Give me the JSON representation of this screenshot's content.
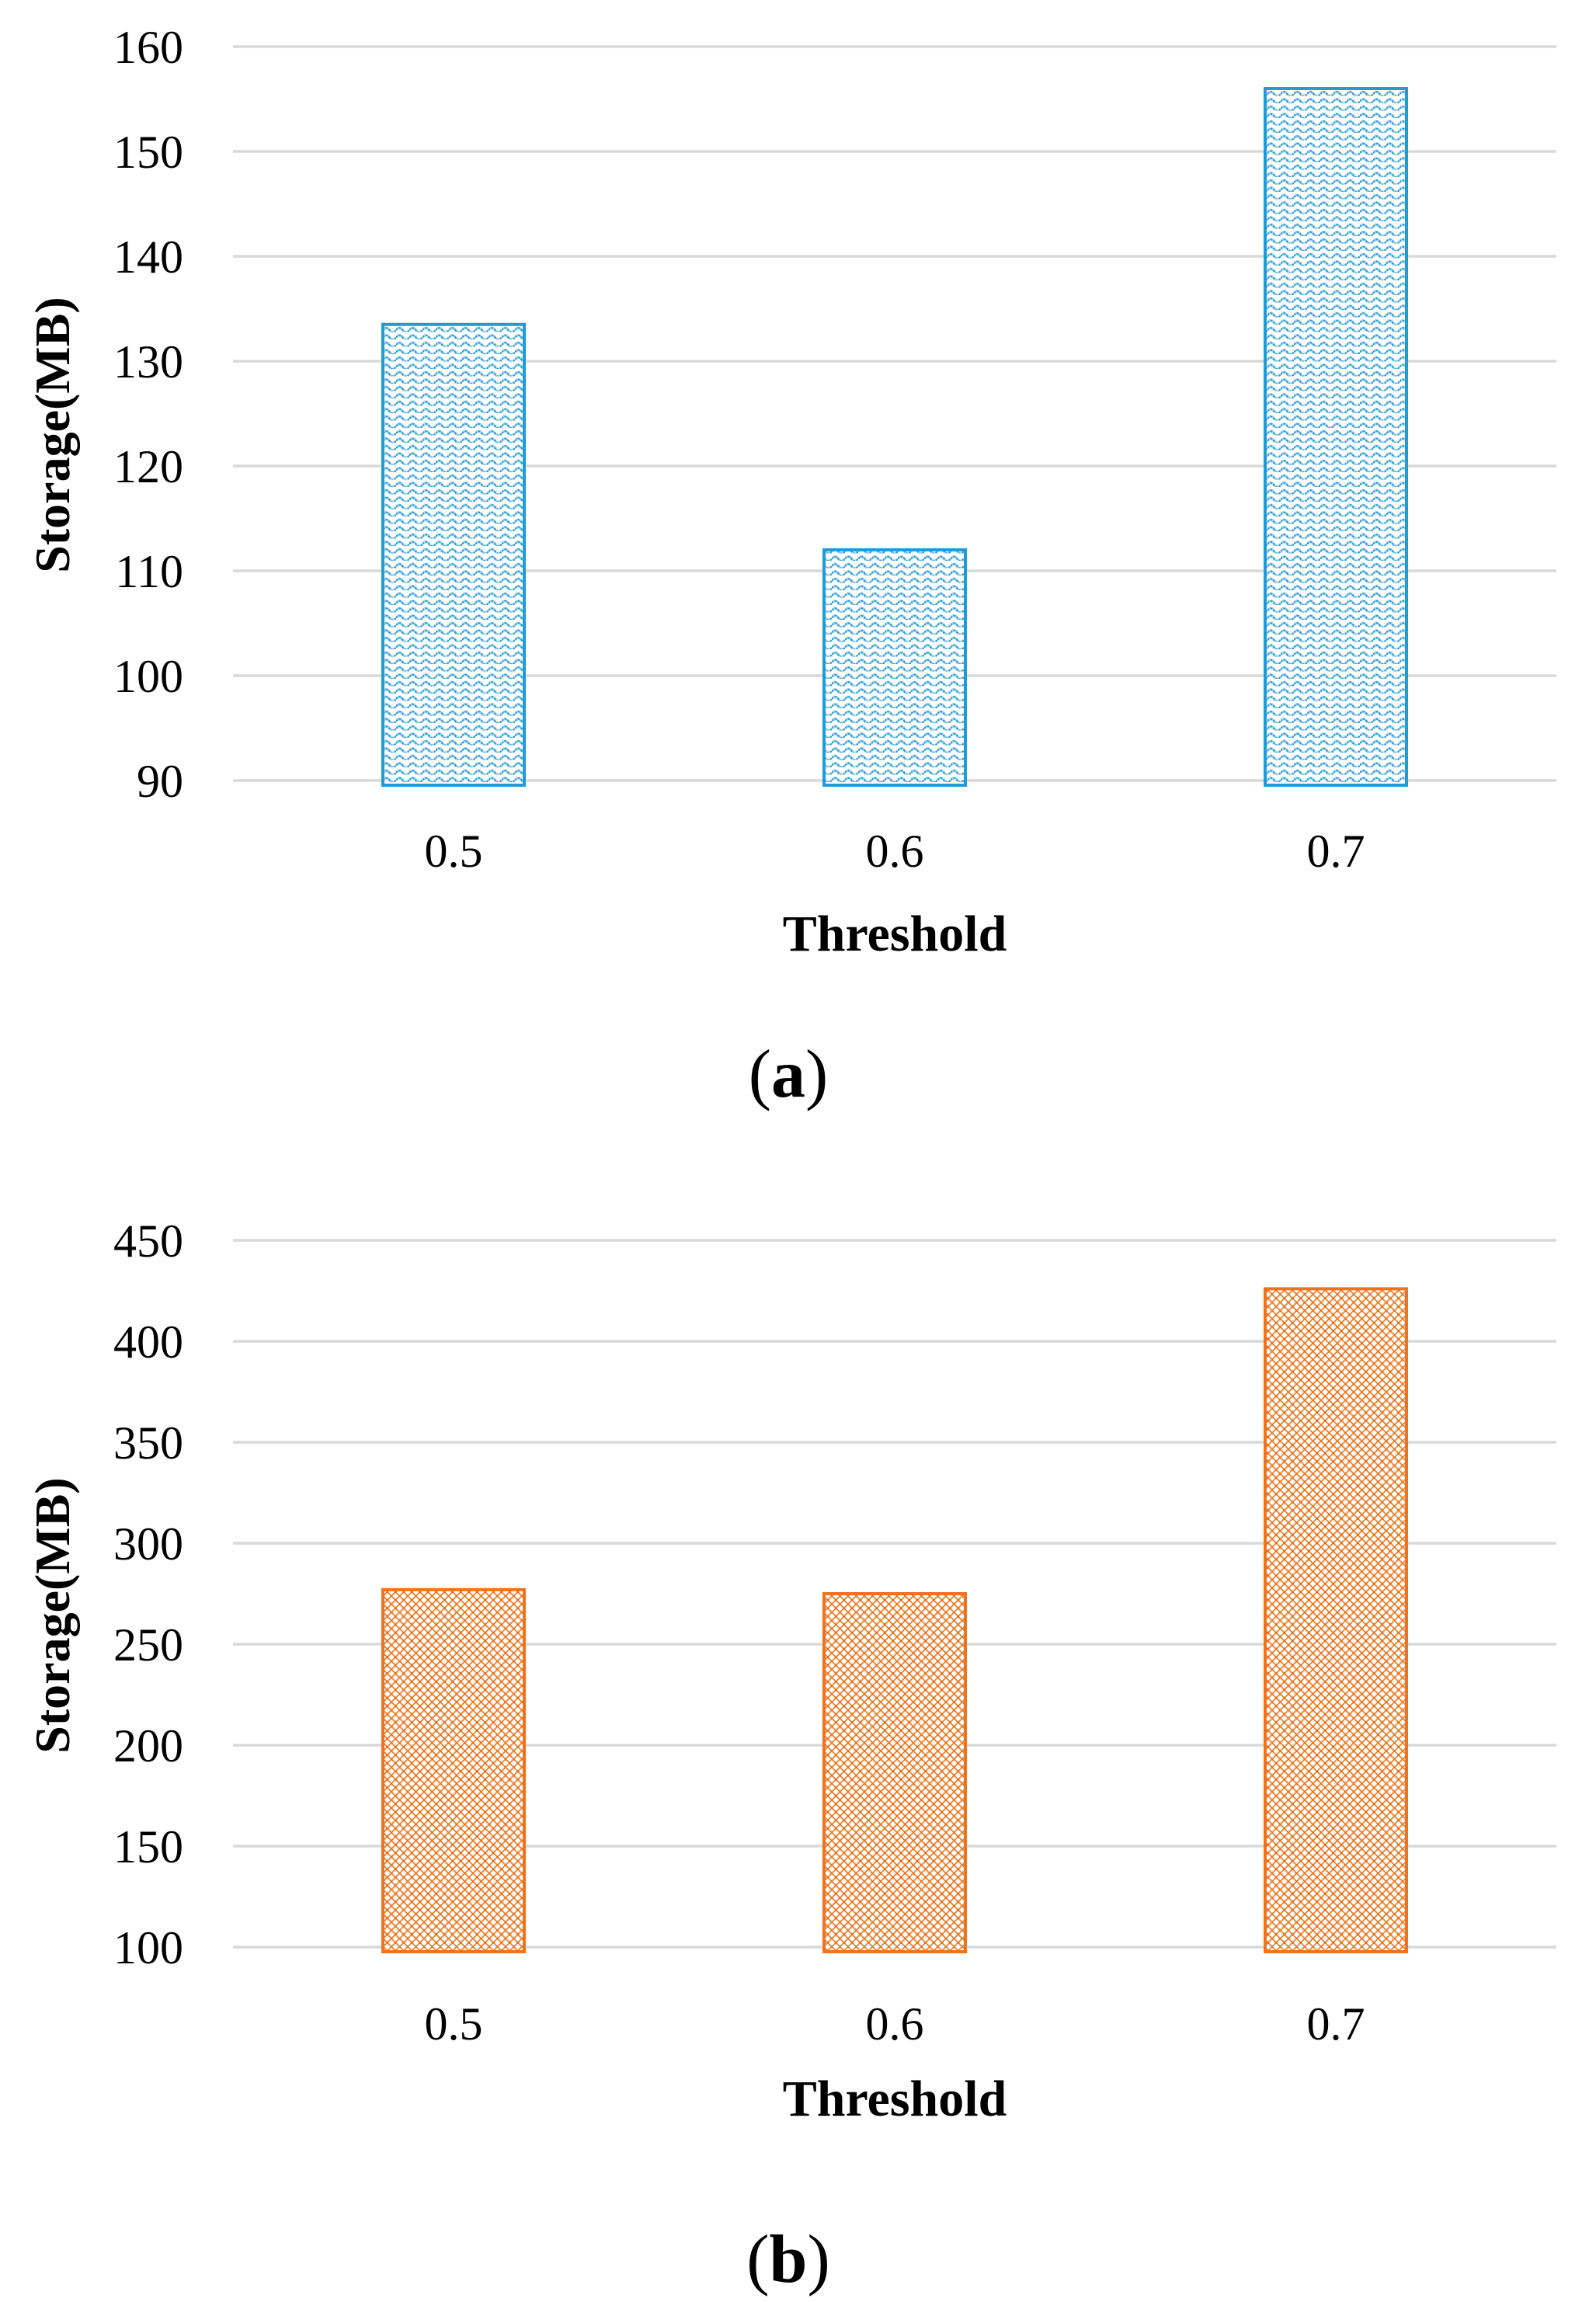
{
  "figure": {
    "background": "#FFFFFF",
    "gridline_color": "#D9D9D9",
    "text_color": "#000000"
  },
  "captions": {
    "a": {
      "open": "(",
      "letter": "a",
      "close": ")"
    },
    "b": {
      "open": "(",
      "letter": "b",
      "close": ")"
    }
  },
  "chart_data": [
    {
      "type": "bar",
      "subfigure": "a",
      "title": "",
      "categories": [
        "0.5",
        "0.6",
        "0.7"
      ],
      "values": [
        133.5,
        112,
        156
      ],
      "xlabel": "Threshold",
      "ylabel": "Storage(MB)",
      "ylim": [
        90,
        160
      ],
      "ytick_step": 10,
      "yticks": [
        90,
        100,
        110,
        120,
        130,
        140,
        150,
        160
      ],
      "grid": true,
      "legend": false,
      "bar_color": "#1E9CD8",
      "bar_pattern": "wavy-dot-rows",
      "pattern_colors": {
        "line": "#2D9BD5",
        "underlay": "#A9D9F1"
      }
    },
    {
      "type": "bar",
      "subfigure": "b",
      "title": "",
      "categories": [
        "0.5",
        "0.6",
        "0.7"
      ],
      "values": [
        277,
        275,
        426
      ],
      "xlabel": "Threshold",
      "ylabel": "Storage(MB)",
      "ylim": [
        100,
        450
      ],
      "ytick_step": 50,
      "yticks": [
        100,
        150,
        200,
        250,
        300,
        350,
        400,
        450
      ],
      "grid": true,
      "legend": false,
      "bar_color": "#F2711C",
      "bar_pattern": "diagonal-weave",
      "pattern_colors": {
        "line": "#F0812E",
        "dot": "#E8680F"
      }
    }
  ]
}
